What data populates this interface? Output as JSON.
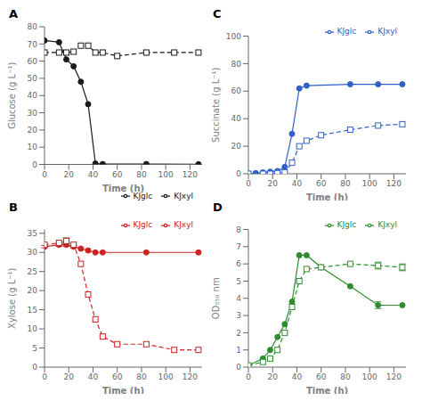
{
  "chart_data": [
    {
      "type": "line",
      "title": "A",
      "xlabel": "Time (h)",
      "ylabel": "Glucose (g L⁻¹)",
      "xlim": [
        0,
        130
      ],
      "xticks": [
        0,
        20,
        40,
        60,
        80,
        100,
        120
      ],
      "ylim": [
        0,
        80
      ],
      "yticks": [
        0,
        10,
        20,
        30,
        40,
        50,
        60,
        70,
        80
      ],
      "grid": false,
      "legend": "lower right",
      "series": [
        {
          "name": "KJglc",
          "color": "#1a1a1a",
          "marker": "circle",
          "line_style": "solid",
          "x": [
            0,
            12,
            18,
            24,
            30,
            36,
            42,
            48,
            84,
            127
          ],
          "values": [
            72,
            71,
            61,
            57,
            48,
            35,
            0.5,
            0.2,
            0.2,
            0.1
          ]
        },
        {
          "name": "KJxyl",
          "color": "#1a1a1a",
          "marker": "square",
          "line_style": "dashed",
          "x": [
            0,
            12,
            18,
            24,
            30,
            36,
            42,
            48,
            60,
            84,
            107,
            127
          ],
          "values": [
            65,
            65,
            65,
            65.5,
            69,
            69,
            65,
            65,
            63,
            65,
            65,
            65
          ]
        }
      ]
    },
    {
      "type": "line",
      "title": "B",
      "xlabel": "Time (h)",
      "ylabel": "Xylose (g L⁻¹)",
      "xlim": [
        0,
        130
      ],
      "xticks": [
        0,
        20,
        40,
        60,
        80,
        100,
        120
      ],
      "ylim": [
        0,
        36
      ],
      "yticks": [
        0,
        5,
        10,
        15,
        20,
        25,
        30,
        35
      ],
      "grid": false,
      "legend": "upper right",
      "series": [
        {
          "name": "KJglc",
          "color": "#CC2222",
          "marker": "circle",
          "line_style": "solid",
          "x": [
            0,
            12,
            18,
            24,
            30,
            36,
            42,
            48,
            84,
            127
          ],
          "values": [
            31.5,
            32.0,
            32.0,
            31.5,
            31.0,
            30.5,
            30.0,
            30.0,
            30.0,
            30.0
          ],
          "yerr": [
            0.3,
            0.4,
            0.4,
            0.3,
            0,
            0,
            0,
            0,
            0,
            0
          ]
        },
        {
          "name": "KJxyl",
          "color": "#CC2222",
          "marker": "square",
          "line_style": "dashed",
          "x": [
            0,
            12,
            18,
            24,
            30,
            36,
            42,
            48,
            60,
            84,
            107,
            127
          ],
          "values": [
            32,
            32.5,
            33,
            32,
            27,
            19,
            12.5,
            8,
            6,
            6,
            4.5,
            4.5
          ],
          "yerr": [
            0,
            0,
            0.8,
            0,
            0,
            0,
            0,
            0,
            0,
            0,
            0,
            0
          ]
        }
      ]
    },
    {
      "type": "line",
      "title": "C",
      "xlabel": "Time (h)",
      "ylabel": "Succinate (g L⁻¹)",
      "xlim": [
        0,
        130
      ],
      "xticks": [
        0,
        20,
        40,
        60,
        80,
        100,
        120
      ],
      "ylim": [
        0,
        100
      ],
      "yticks": [
        0,
        20,
        40,
        60,
        80,
        100
      ],
      "grid": false,
      "legend": "upper right",
      "series": [
        {
          "name": "KJglc",
          "color": "#3060C8",
          "marker": "circle",
          "line_style": "solid",
          "x": [
            0,
            6,
            12,
            18,
            24,
            30,
            36,
            42,
            48,
            84,
            107,
            127
          ],
          "values": [
            0.2,
            0.5,
            1.0,
            1.5,
            2.0,
            5.0,
            29,
            62,
            64,
            65,
            65,
            65
          ]
        },
        {
          "name": "KJxyl",
          "color": "#3060C8",
          "marker": "square",
          "line_style": "dashed",
          "x": [
            0,
            12,
            18,
            24,
            30,
            36,
            42,
            48,
            60,
            84,
            107,
            127
          ],
          "values": [
            0,
            0,
            0,
            0.5,
            1.0,
            8.0,
            20,
            24,
            28,
            32,
            35,
            36
          ]
        }
      ]
    },
    {
      "type": "line",
      "title": "D",
      "xlabel": "Time (h)",
      "ylabel": "OD₅₅₀ nm",
      "xlim": [
        0,
        130
      ],
      "xticks": [
        0,
        20,
        40,
        60,
        80,
        100,
        120
      ],
      "ylim": [
        0,
        8
      ],
      "yticks": [
        0,
        1,
        2,
        3,
        4,
        5,
        6,
        7,
        8
      ],
      "grid": false,
      "legend": "upper right",
      "series": [
        {
          "name": "KJglc",
          "color": "#2E8B2E",
          "marker": "circle",
          "line_style": "solid",
          "x": [
            0,
            12,
            18,
            24,
            30,
            36,
            42,
            48,
            60,
            84,
            107,
            127
          ],
          "values": [
            0.1,
            0.5,
            1.0,
            1.75,
            2.5,
            3.8,
            6.5,
            6.5,
            5.8,
            4.7,
            3.6,
            3.6
          ],
          "yerr": [
            0,
            0,
            0,
            0,
            0,
            0,
            0,
            0,
            0,
            0,
            0.2,
            0
          ]
        },
        {
          "name": "KJxyl",
          "color": "#2E8B2E",
          "marker": "square",
          "line_style": "dashed",
          "x": [
            0,
            12,
            18,
            24,
            30,
            36,
            42,
            48,
            60,
            84,
            107,
            127
          ],
          "values": [
            0.1,
            0.3,
            0.5,
            1.0,
            2.0,
            3.5,
            5.0,
            5.7,
            5.8,
            6.0,
            5.9,
            5.8
          ],
          "yerr": [
            0,
            0,
            0,
            0,
            0,
            0,
            0,
            0,
            0,
            0,
            0.2,
            0.2
          ]
        }
      ]
    }
  ]
}
